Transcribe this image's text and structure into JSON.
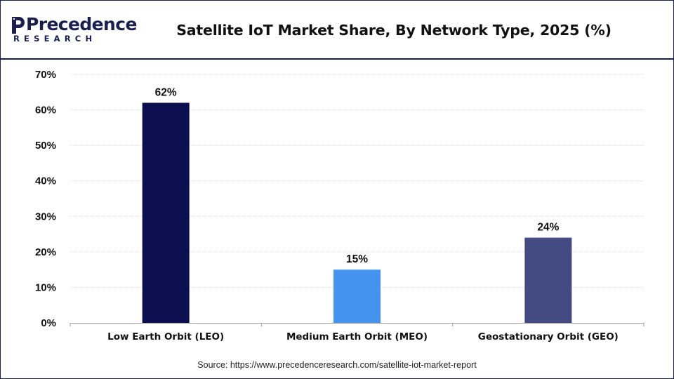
{
  "header": {
    "logo_main": "Precedence",
    "logo_sub": "RESEARCH"
  },
  "chart_data": {
    "type": "bar",
    "title": "Satellite IoT Market Share, By Network Type, 2025 (%)",
    "categories": [
      "Low Earth Orbit (LEO)",
      "Medium Earth Orbit (MEO)",
      "Geostationary Orbit (GEO)"
    ],
    "values": [
      62,
      15,
      24
    ],
    "data_labels": [
      "62%",
      "15%",
      "24%"
    ],
    "bar_colors": [
      "#0b0f4f",
      "#4493ee",
      "#444a82"
    ],
    "ylim": [
      0,
      70
    ],
    "yticks": [
      0,
      10,
      20,
      30,
      40,
      50,
      60,
      70
    ],
    "ytick_labels": [
      "0%",
      "10%",
      "20%",
      "30%",
      "40%",
      "50%",
      "60%",
      "70%"
    ],
    "xlabel": "",
    "ylabel": "",
    "grid": true,
    "legend": "none"
  },
  "footer": {
    "source": "Source: https://www.precedenceresearch.com/satellite-iot-market-report"
  },
  "colors": {
    "brand": "#1a1f4d",
    "grid": "#dddddd",
    "axis": "#9a9a9a"
  }
}
